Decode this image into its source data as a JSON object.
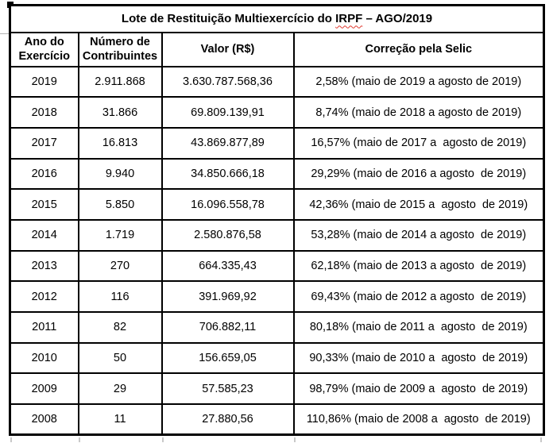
{
  "title": {
    "prefix": "Lote de Restituição Multiexercício do ",
    "misspelled_word": "IRPF",
    "suffix": " – AGO/2019"
  },
  "table": {
    "headers": [
      {
        "label": "Ano do\nExercício"
      },
      {
        "label": "Número de\nContribuintes"
      },
      {
        "label": "Valor (R$)"
      },
      {
        "label": "Correção pela Selic"
      }
    ],
    "rows": [
      {
        "year": "2019",
        "contributors": "2.911.868",
        "value": "3.630.787.568,36",
        "selic": "2,58% (maio de 2019 a agosto de 2019)"
      },
      {
        "year": "2018",
        "contributors": "31.866",
        "value": "69.809.139,91",
        "selic": "8,74% (maio de 2018 a agosto de 2019)"
      },
      {
        "year": "2017",
        "contributors": "16.813",
        "value": "43.869.877,89",
        "selic": "16,57% (maio de 2017 a  agosto de 2019)"
      },
      {
        "year": "2016",
        "contributors": "9.940",
        "value": "34.850.666,18",
        "selic": "29,29% (maio de 2016 a agosto  de 2019)"
      },
      {
        "year": "2015",
        "contributors": "5.850",
        "value": "16.096.558,78",
        "selic": "42,36% (maio de 2015 a  agosto  de 2019)"
      },
      {
        "year": "2014",
        "contributors": "1.719",
        "value": "2.580.876,58",
        "selic": "53,28% (maio de 2014 a agosto  de 2019)"
      },
      {
        "year": "2013",
        "contributors": "270",
        "value": "664.335,43",
        "selic": "62,18% (maio de 2013 a agosto  de 2019)"
      },
      {
        "year": "2012",
        "contributors": "116",
        "value": "391.969,92",
        "selic": "69,43% (maio de 2012 a agosto  de 2019)"
      },
      {
        "year": "2011",
        "contributors": "82",
        "value": "706.882,11",
        "selic": "80,18% (maio de 2011 a  agosto  de 2019)"
      },
      {
        "year": "2010",
        "contributors": "50",
        "value": "156.659,05",
        "selic": "90,33% (maio de 2010 a  agosto  de 2019)"
      },
      {
        "year": "2009",
        "contributors": "29",
        "value": "57.585,23",
        "selic": "98,79% (maio de 2009 a  agosto  de 2019)"
      },
      {
        "year": "2008",
        "contributors": "11",
        "value": "27.880,56",
        "selic": "110,86% (maio de 2008 a  agosto  de 2019)"
      }
    ]
  },
  "colors": {
    "table_border": "#000000",
    "spellcheck_underline": "#e0392f",
    "gridline_stub": "#c9c9c9"
  }
}
